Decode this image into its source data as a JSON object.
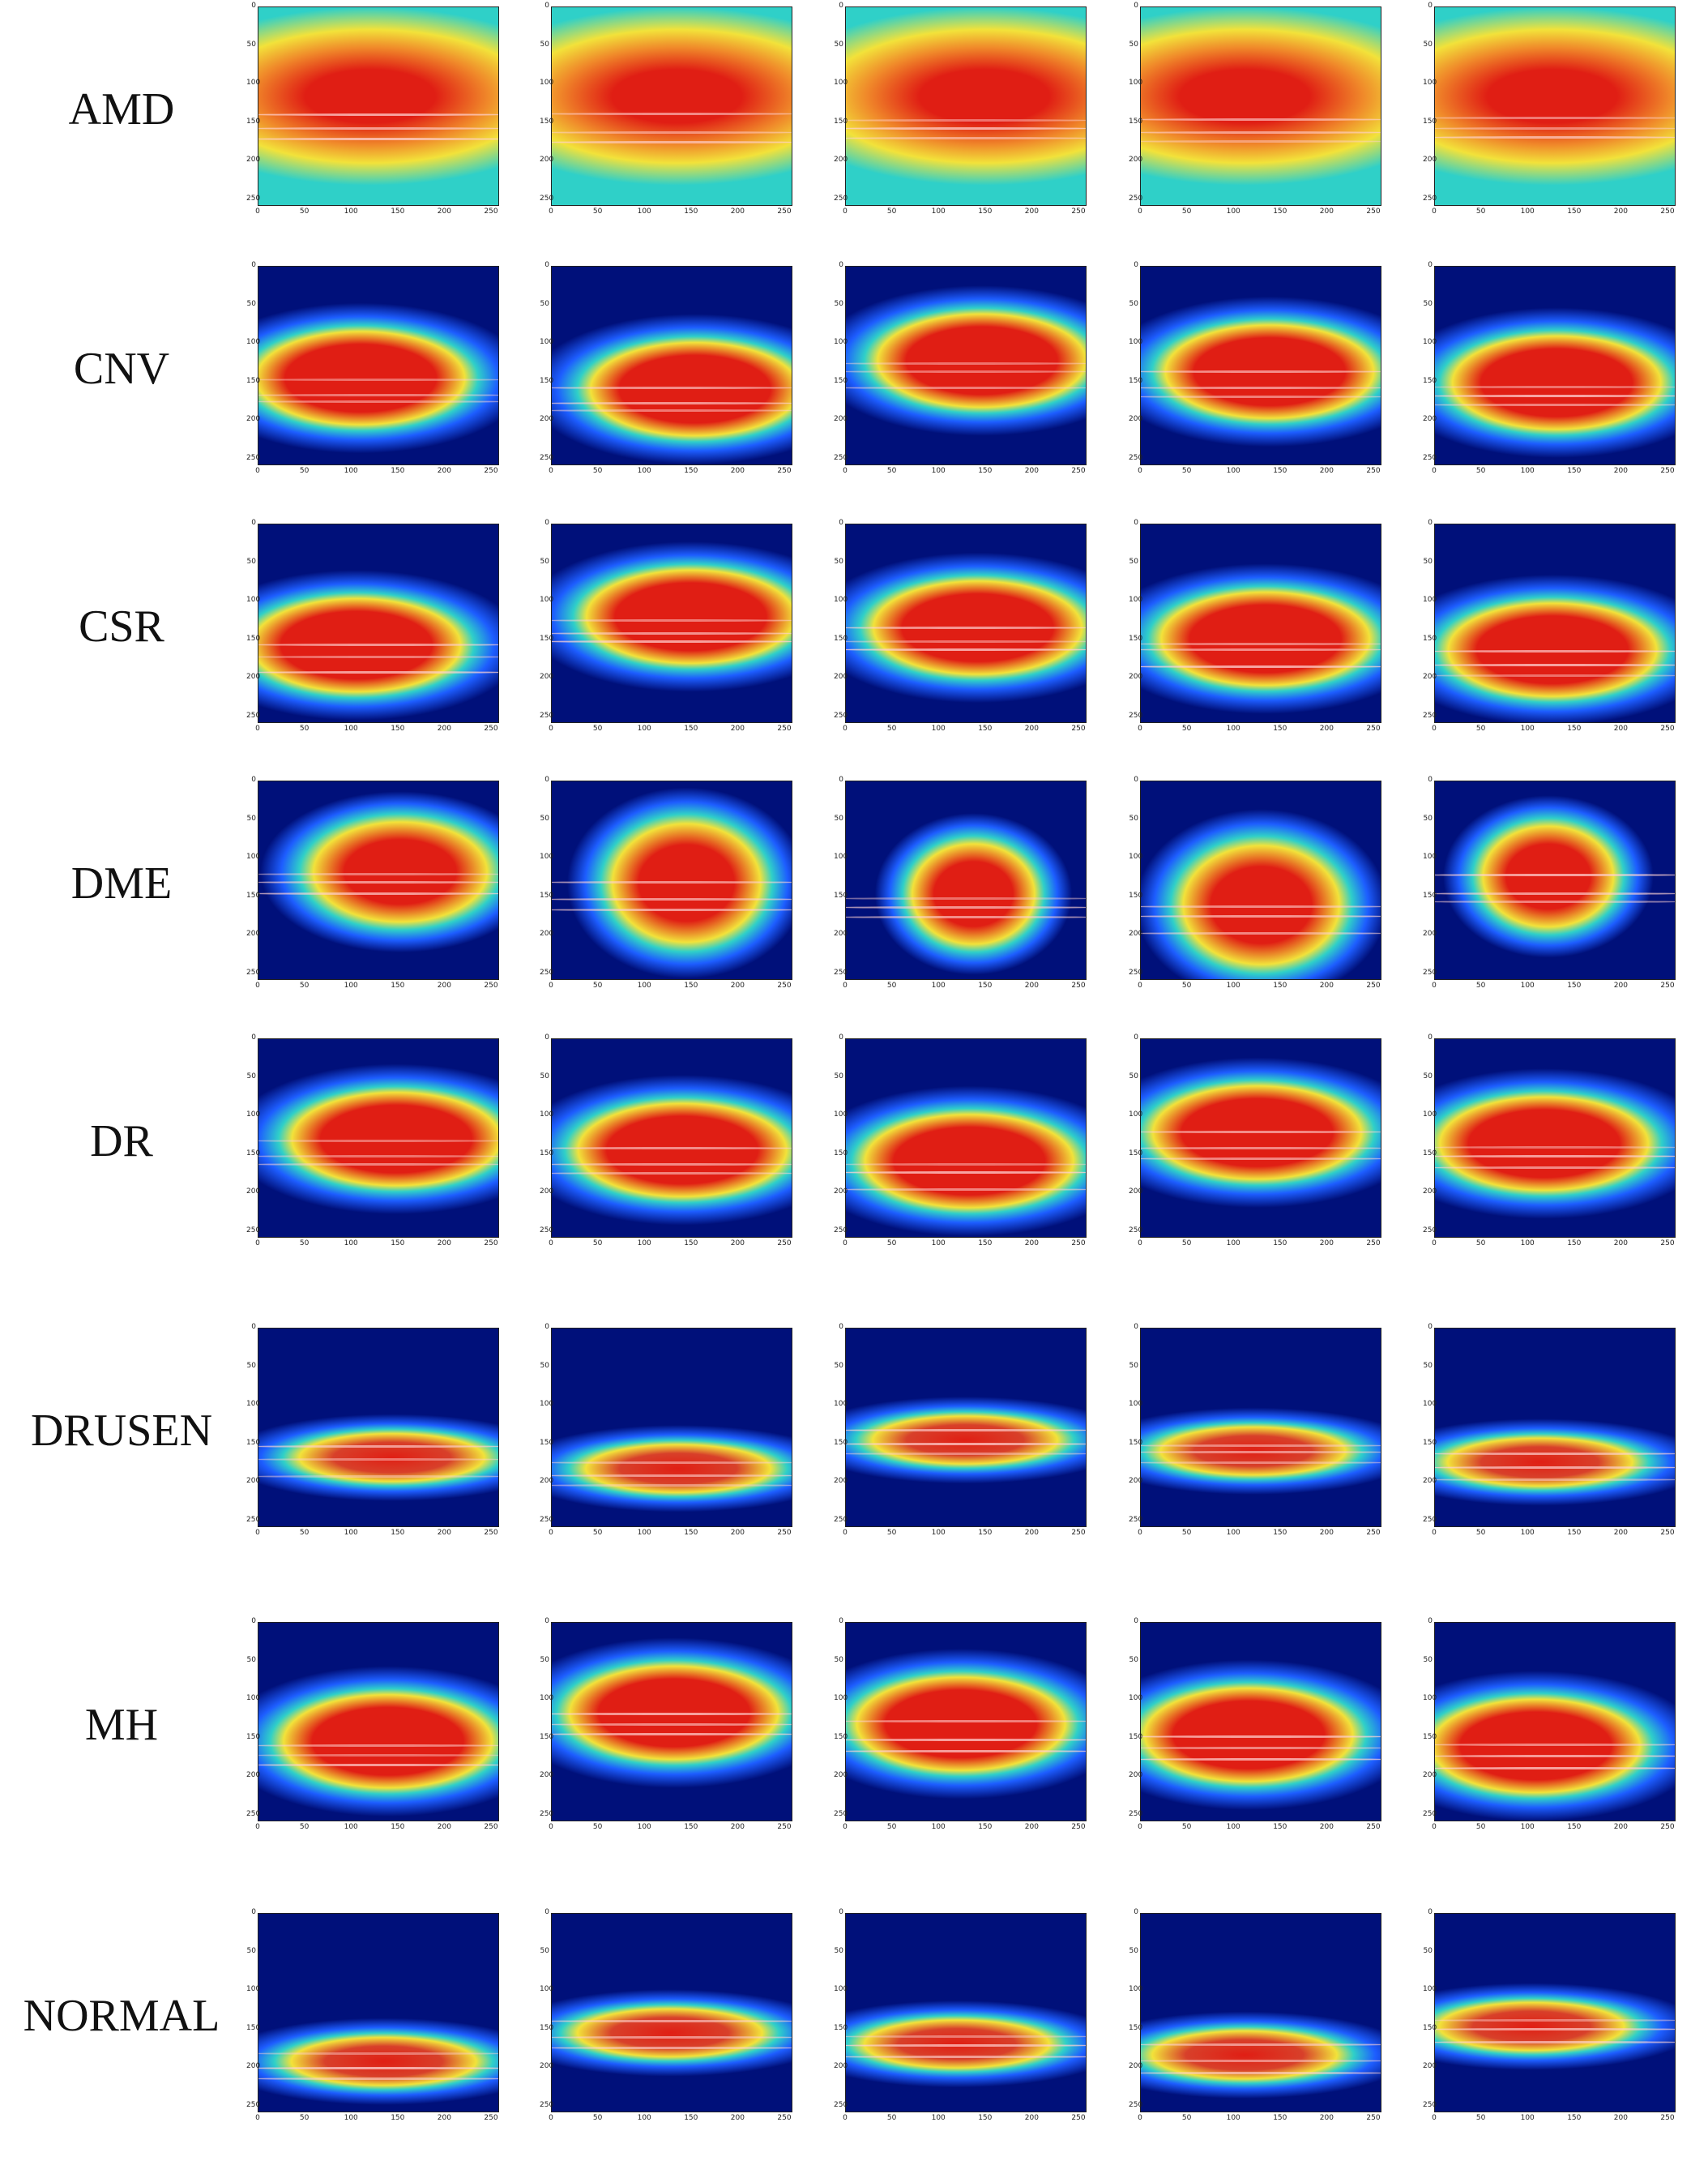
{
  "figure": {
    "rows": [
      {
        "label": "AMD",
        "style": "amd"
      },
      {
        "label": "CNV",
        "style": "band"
      },
      {
        "label": "CSR",
        "style": "band"
      },
      {
        "label": "DME",
        "style": "blob"
      },
      {
        "label": "DR",
        "style": "band"
      },
      {
        "label": "DRUSEN",
        "style": "thin"
      },
      {
        "label": "MH",
        "style": "band"
      },
      {
        "label": "NORMAL",
        "style": "thin"
      }
    ],
    "columns": 5,
    "axis_ticks": [
      "0",
      "50",
      "100",
      "150",
      "200",
      "250"
    ],
    "colors": {
      "background_cold": "#00107a",
      "cool": "#1d5dff",
      "mid": "#2fd0c8",
      "warm": "#f2e23a",
      "hot": "#e01e14",
      "retina_layer": "#ffd2d2"
    }
  }
}
